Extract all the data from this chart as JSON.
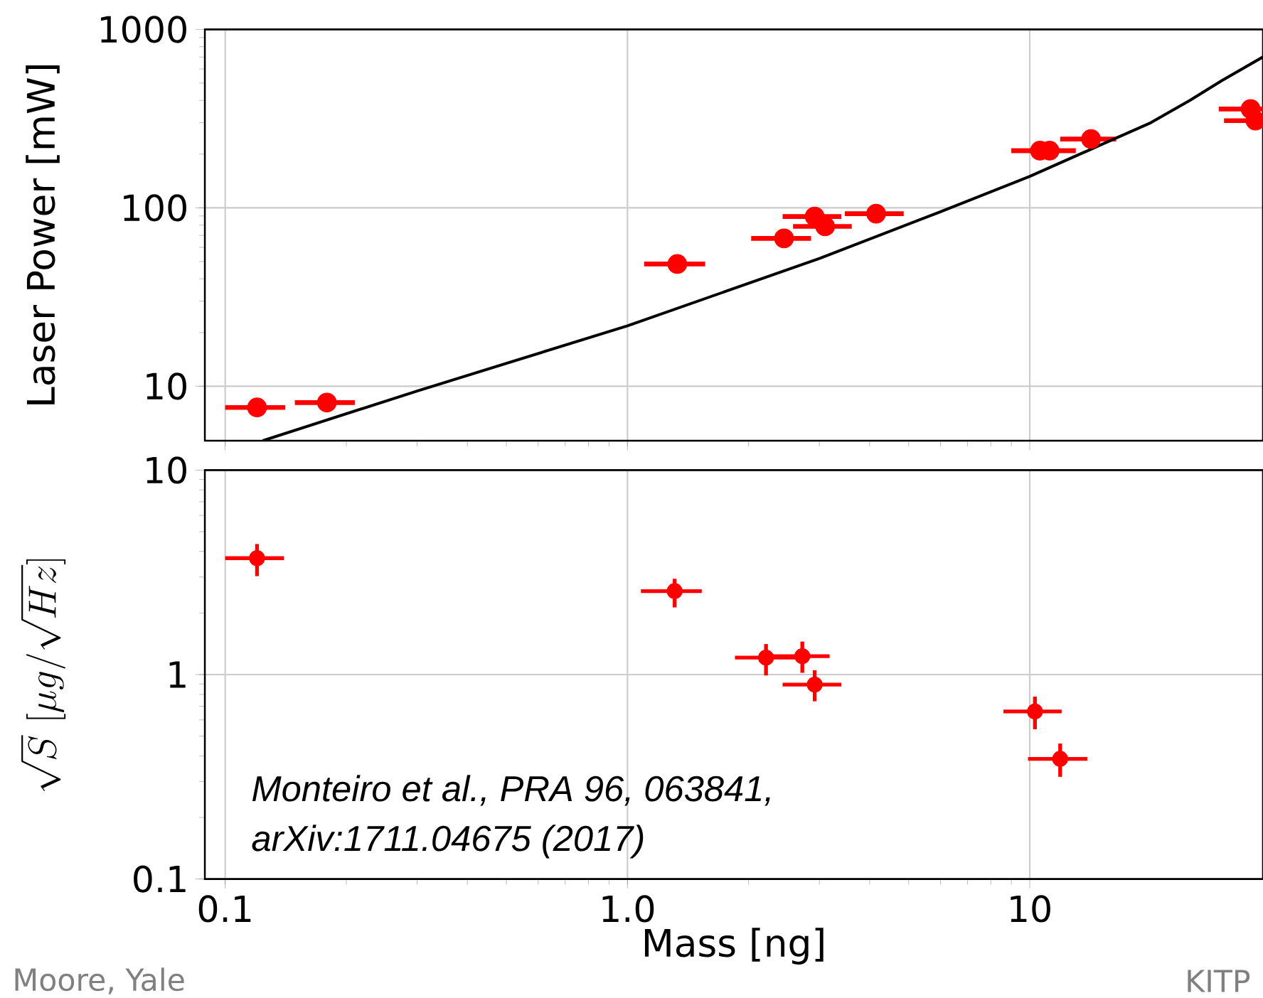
{
  "chart_data": [
    {
      "type": "scatter",
      "ylabel": "Laser Power [mW]",
      "log": "xy",
      "grid": true,
      "tick_labels": "y",
      "marker": "circle",
      "xlim": [
        0.089,
        38
      ],
      "ylim": [
        4.95,
        1000
      ],
      "xticks": [
        {
          "value": 0.1,
          "label": null
        },
        {
          "value": 1,
          "label": null
        },
        {
          "value": 10,
          "label": null
        }
      ],
      "yticks": [
        10,
        100,
        1000
      ],
      "series": [
        {
          "color": "#ff0000",
          "x": [
            0.12,
            0.179,
            1.33,
            2.45,
            2.92,
            3.1,
            4.15,
            10.6,
            11.2,
            14.2,
            35.4,
            36.4
          ],
          "values": [
            7.6,
            8.1,
            48.4,
            67.4,
            89.4,
            78.7,
            92.7,
            209,
            209,
            243,
            358,
            308
          ],
          "xerrors": [
            [
              0.1,
              0.141
            ],
            [
              0.149,
              0.21
            ],
            [
              1.1,
              1.56
            ],
            [
              2.03,
              2.86
            ],
            [
              2.43,
              3.4
            ],
            [
              2.58,
              3.61
            ],
            [
              3.47,
              4.86
            ],
            [
              9.0,
              13.0
            ],
            [
              9.0,
              13.0
            ],
            [
              11.9,
              16.4
            ],
            [
              29.5,
              38
            ],
            [
              30.4,
              36.4
            ]
          ]
        },
        {
          "type": "line",
          "color": "#000000",
          "line_style": "solid",
          "marker": "none",
          "x": [
            0.124,
            0.3,
            1,
            3,
            6,
            10,
            15,
            20,
            25,
            30,
            38
          ],
          "values": [
            4.95,
            9.4,
            21.8,
            52,
            95,
            150,
            225,
            300,
            400,
            516,
            701
          ]
        }
      ]
    },
    {
      "type": "scatter",
      "xlabel": "Mass [ng]",
      "ylabel": "\\sqrt{S}\\ [\\mu g/\\sqrt{Hz}]",
      "log": "xy",
      "grid": true,
      "marker": "circle",
      "xlim": [
        0.089,
        38
      ],
      "ylim": [
        0.1,
        10
      ],
      "xticks": [
        0.1,
        {
          "value": 1,
          "label": "1.0"
        },
        10
      ],
      "yticks": [
        0.1,
        1,
        10
      ],
      "annotations": [
        "Monteiro et al., PRA 96, 063841,",
        "arXiv:1711.04675 (2017)",
        "Moore, Yale",
        "KITP"
      ],
      "series": [
        {
          "color": "#ff0000",
          "x": [
            0.12,
            1.31,
            2.21,
            2.72,
            2.92,
            10.3,
            11.9
          ],
          "values": [
            3.71,
            2.56,
            1.21,
            1.23,
            0.893,
            0.66,
            0.387
          ],
          "errors": [
            [
              3.03,
              4.35
            ],
            [
              2.13,
              2.94
            ],
            [
              0.99,
              1.41
            ],
            [
              1.02,
              1.45
            ],
            [
              0.74,
              1.05
            ],
            [
              0.54,
              0.78
            ],
            [
              0.316,
              0.46
            ]
          ],
          "xerrors": [
            [
              0.1,
              0.14
            ],
            [
              1.08,
              1.53
            ],
            [
              1.85,
              2.63
            ],
            [
              2.24,
              3.18
            ],
            [
              2.43,
              3.4
            ],
            [
              8.6,
              12.0
            ],
            [
              9.9,
              13.9
            ]
          ]
        }
      ]
    }
  ]
}
